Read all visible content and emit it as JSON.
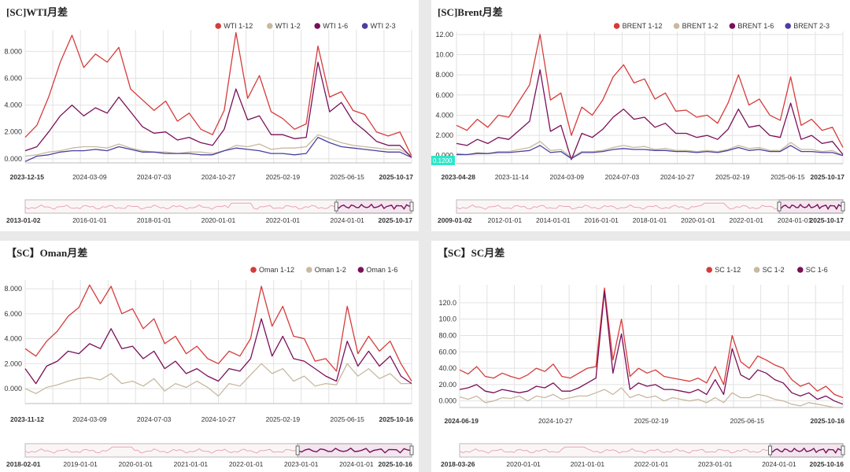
{
  "colors": {
    "red": "#d63b3b",
    "tan": "#c8b9a0",
    "purple": "#7a0f5a",
    "blue": "#4a3f9f",
    "navBg": "#fbf6f6",
    "grid": "#e2e2e2",
    "badge": "#2ee6c8"
  },
  "charts": [
    {
      "title": "[SC]WTI月差",
      "chart_data": {
        "type": "line",
        "ylim": [
          -0.3,
          9.6
        ],
        "yticks": [
          "0.000",
          "2.000",
          "4.000",
          "6.000",
          "8.000"
        ],
        "ytick_values": [
          0,
          2,
          4,
          6,
          8
        ],
        "xticks": [
          "2023-12-15",
          "2024-03-09",
          "2024-07-03",
          "2024-10-27",
          "2025-02-19",
          "2025-06-15",
          "2025-10-17"
        ],
        "series": [
          {
            "name": "WTI 1-12",
            "color": "red",
            "values": [
              1.6,
              2.5,
              4.6,
              7.2,
              9.2,
              6.8,
              7.8,
              7.2,
              8.3,
              5.2,
              4.4,
              3.6,
              4.3,
              2.8,
              3.4,
              2.2,
              1.8,
              3.6,
              9.4,
              4.5,
              6.2,
              3.5,
              3.0,
              2.2,
              2.6,
              8.4,
              4.6,
              5.0,
              3.6,
              3.3,
              2.0,
              1.7,
              2.0,
              0.2
            ]
          },
          {
            "name": "WTI 1-2",
            "color": "tan",
            "values": [
              0.2,
              0.3,
              0.5,
              0.6,
              0.8,
              0.9,
              0.9,
              0.8,
              1.1,
              0.8,
              0.6,
              0.5,
              0.5,
              0.4,
              0.5,
              0.5,
              0.4,
              0.6,
              1.0,
              0.9,
              1.1,
              0.7,
              0.8,
              0.8,
              0.9,
              1.8,
              1.5,
              1.2,
              1.0,
              0.9,
              0.8,
              0.7,
              0.7,
              0.2
            ]
          },
          {
            "name": "WTI 1-6",
            "color": "purple",
            "values": [
              0.6,
              0.9,
              2.0,
              3.2,
              4.0,
              3.2,
              3.8,
              3.4,
              4.6,
              3.5,
              2.4,
              1.9,
              2.0,
              1.4,
              1.6,
              1.2,
              1.0,
              2.2,
              5.2,
              2.9,
              3.2,
              1.8,
              1.8,
              1.5,
              1.6,
              7.2,
              3.5,
              4.2,
              2.8,
              2.1,
              1.3,
              1.0,
              1.0,
              0.1
            ]
          },
          {
            "name": "WTI 2-3",
            "color": "blue",
            "values": [
              -0.2,
              0.2,
              0.3,
              0.5,
              0.6,
              0.6,
              0.7,
              0.6,
              0.9,
              0.7,
              0.5,
              0.5,
              0.4,
              0.4,
              0.4,
              0.3,
              0.3,
              0.6,
              0.8,
              0.7,
              0.6,
              0.4,
              0.4,
              0.3,
              0.4,
              1.6,
              1.2,
              0.9,
              0.8,
              0.7,
              0.6,
              0.5,
              0.5,
              0.1
            ]
          }
        ],
        "nav_labels": [
          "2013-01-02",
          "2016-01-01",
          "2018-01-01",
          "2020-01-01",
          "2022-01-01",
          "2024-01-01",
          "2025-10-17"
        ],
        "nav_range": [
          0.0,
          1.0
        ],
        "nav_window_start": 0.805,
        "nav_dip": 0.56
      }
    },
    {
      "title": "[SC]Brent月差",
      "chart_data": {
        "type": "line",
        "ylim": [
          -0.8,
          12.3
        ],
        "yticks": [
          "0.000",
          "2.000",
          "4.000",
          "6.000",
          "8.000",
          "10.00",
          "12.00"
        ],
        "ytick_values": [
          0,
          2,
          4,
          6,
          8,
          10,
          12
        ],
        "badge": "0.1200",
        "xticks": [
          "2023-04-28",
          "2023-11-14",
          "2024-03-09",
          "2024-07-03",
          "2024-10-27",
          "2025-02-19",
          "2025-06-15",
          "2025-10-17"
        ],
        "series": [
          {
            "name": "BRENT 1-12",
            "color": "red",
            "values": [
              3.0,
              2.5,
              3.6,
              2.8,
              4.0,
              3.8,
              5.4,
              7.0,
              12.0,
              5.5,
              6.2,
              2.0,
              4.8,
              4.0,
              5.5,
              7.8,
              9.0,
              7.2,
              7.6,
              5.6,
              6.2,
              4.4,
              4.5,
              3.8,
              4.0,
              3.2,
              5.2,
              8.0,
              5.0,
              5.6,
              4.0,
              3.5,
              7.8,
              3.0,
              3.6,
              2.5,
              2.8,
              0.8
            ]
          },
          {
            "name": "BRENT 1-2",
            "color": "tan",
            "values": [
              0.2,
              0.1,
              0.3,
              0.2,
              0.4,
              0.4,
              0.6,
              0.8,
              1.4,
              0.5,
              0.6,
              -0.2,
              0.4,
              0.4,
              0.5,
              0.8,
              1.0,
              0.8,
              0.9,
              0.6,
              0.7,
              0.5,
              0.5,
              0.4,
              0.5,
              0.4,
              0.6,
              1.0,
              0.7,
              0.8,
              0.5,
              0.5,
              1.3,
              0.6,
              0.6,
              0.4,
              0.5,
              0.0
            ]
          },
          {
            "name": "BRENT 1-6",
            "color": "purple",
            "values": [
              1.2,
              1.0,
              1.6,
              1.2,
              1.8,
              1.6,
              2.5,
              3.4,
              8.5,
              2.4,
              3.0,
              -0.4,
              2.2,
              1.8,
              2.6,
              3.8,
              4.6,
              3.6,
              3.8,
              2.8,
              3.2,
              2.2,
              2.2,
              1.8,
              2.0,
              1.6,
              2.6,
              4.6,
              2.8,
              3.0,
              2.0,
              1.8,
              5.2,
              1.6,
              2.0,
              1.2,
              1.4,
              0.1
            ]
          },
          {
            "name": "BRENT 2-3",
            "color": "blue",
            "values": [
              0.1,
              0.1,
              0.2,
              0.2,
              0.3,
              0.3,
              0.4,
              0.5,
              1.0,
              0.3,
              0.4,
              -0.3,
              0.3,
              0.3,
              0.4,
              0.6,
              0.7,
              0.6,
              0.6,
              0.5,
              0.5,
              0.4,
              0.4,
              0.3,
              0.4,
              0.3,
              0.5,
              0.8,
              0.5,
              0.6,
              0.4,
              0.4,
              1.0,
              0.4,
              0.4,
              0.3,
              0.3,
              0.0
            ]
          }
        ],
        "nav_labels": [
          "2009-01-02",
          "2012-01-01",
          "2014-01-01",
          "2016-01-01",
          "2018-01-01",
          "2020-01-01",
          "2022-01-01",
          "2024-01-01",
          "2025-10-17"
        ],
        "nav_range": [
          0.0,
          1.0
        ],
        "nav_window_start": 0.835,
        "nav_dip": 0.665
      }
    },
    {
      "title": "【SC】Oman月差",
      "chart_data": {
        "type": "line",
        "ylim": [
          -1.2,
          8.7
        ],
        "yticks": [
          "0.000",
          "2.000",
          "4.000",
          "6.000",
          "8.000"
        ],
        "ytick_values": [
          0,
          2,
          4,
          6,
          8
        ],
        "xticks": [
          "2023-11-12",
          "2024-03-09",
          "2024-07-03",
          "2024-10-27",
          "2025-02-19",
          "2025-06-15",
          "2025-10-16"
        ],
        "series": [
          {
            "name": "Oman 1-12",
            "color": "red",
            "values": [
              3.2,
              2.6,
              3.8,
              4.6,
              5.8,
              6.5,
              8.3,
              6.8,
              8.2,
              6.0,
              6.4,
              4.8,
              5.6,
              3.6,
              4.2,
              2.8,
              3.4,
              2.4,
              2.0,
              3.0,
              2.6,
              4.0,
              8.2,
              5.0,
              6.6,
              4.2,
              4.0,
              2.2,
              2.4,
              1.4,
              6.6,
              2.8,
              4.2,
              3.0,
              3.8,
              2.0,
              0.6
            ]
          },
          {
            "name": "Oman 1-2",
            "color": "tan",
            "values": [
              0.0,
              -0.4,
              0.1,
              0.3,
              0.6,
              0.8,
              0.9,
              0.7,
              1.2,
              0.4,
              0.6,
              0.2,
              0.8,
              -0.2,
              0.4,
              0.1,
              0.6,
              0.1,
              -0.6,
              0.4,
              0.2,
              1.1,
              2.0,
              1.2,
              1.6,
              0.6,
              1.0,
              0.2,
              0.4,
              0.3,
              2.0,
              1.0,
              1.6,
              0.8,
              1.2,
              0.4,
              0.4
            ]
          },
          {
            "name": "Oman 1-6",
            "color": "purple",
            "values": [
              1.6,
              0.4,
              1.8,
              2.2,
              3.0,
              2.8,
              3.6,
              3.2,
              4.8,
              3.2,
              3.4,
              2.4,
              3.0,
              1.6,
              2.2,
              1.2,
              1.6,
              1.0,
              0.6,
              1.6,
              1.4,
              2.4,
              5.6,
              2.6,
              4.2,
              2.4,
              2.2,
              1.6,
              1.0,
              0.6,
              3.8,
              1.8,
              3.0,
              1.8,
              2.6,
              1.0,
              0.4
            ]
          }
        ],
        "nav_labels": [
          "2018-02-01",
          "2019-01-01",
          "2020-01-01",
          "2021-01-01",
          "2022-01-01",
          "2023-01-01",
          "2024-01-01",
          "2025-10-16"
        ],
        "nav_range": [
          0.0,
          1.0
        ],
        "nav_window_start": 0.705,
        "nav_dip": 0.25
      }
    },
    {
      "title": "【SC】SC月差",
      "chart_data": {
        "type": "line",
        "ylim": [
          -8,
          142
        ],
        "yticks": [
          "0.000",
          "20.00",
          "40.00",
          "60.00",
          "80.00",
          "100.0",
          "120.0"
        ],
        "ytick_values": [
          0,
          20,
          40,
          60,
          80,
          100,
          120
        ],
        "xticks": [
          "2024-06-19",
          "2024-10-27",
          "2025-02-19",
          "2025-06-15",
          "2025-10-16"
        ],
        "series": [
          {
            "name": "SC 1-12",
            "color": "red",
            "values": [
              38,
              33,
              42,
              30,
              28,
              34,
              30,
              27,
              32,
              40,
              36,
              45,
              30,
              28,
              34,
              40,
              42,
              138,
              50,
              100,
              30,
              40,
              34,
              38,
              30,
              28,
              26,
              24,
              28,
              22,
              42,
              20,
              80,
              48,
              40,
              55,
              50,
              44,
              40,
              26,
              18,
              22,
              12,
              18,
              8,
              4
            ]
          },
          {
            "name": "SC 1-2",
            "color": "tan",
            "values": [
              5,
              2,
              6,
              -2,
              0,
              4,
              3,
              6,
              0,
              6,
              4,
              8,
              2,
              4,
              6,
              6,
              10,
              14,
              8,
              16,
              4,
              8,
              4,
              6,
              0,
              4,
              2,
              0,
              2,
              -2,
              4,
              -2,
              10,
              4,
              4,
              8,
              6,
              2,
              0,
              -4,
              -6,
              -2,
              -4,
              -6,
              -8,
              -8
            ]
          },
          {
            "name": "SC 1-6",
            "color": "purple",
            "values": [
              14,
              16,
              20,
              12,
              10,
              14,
              12,
              10,
              12,
              18,
              16,
              22,
              12,
              12,
              16,
              22,
              28,
              134,
              34,
              82,
              14,
              22,
              18,
              20,
              14,
              14,
              12,
              10,
              14,
              8,
              26,
              8,
              64,
              32,
              26,
              38,
              34,
              26,
              22,
              10,
              6,
              10,
              2,
              6,
              0,
              -4
            ]
          }
        ],
        "nav_labels": [
          "2018-03-26",
          "2020-01-01",
          "2021-01-01",
          "2022-01-01",
          "2023-01-01",
          "2024-01-01",
          "2025-10-16"
        ],
        "nav_range": [
          0.0,
          1.0
        ],
        "nav_window_start": 0.81,
        "nav_dip": 0.3
      }
    }
  ]
}
